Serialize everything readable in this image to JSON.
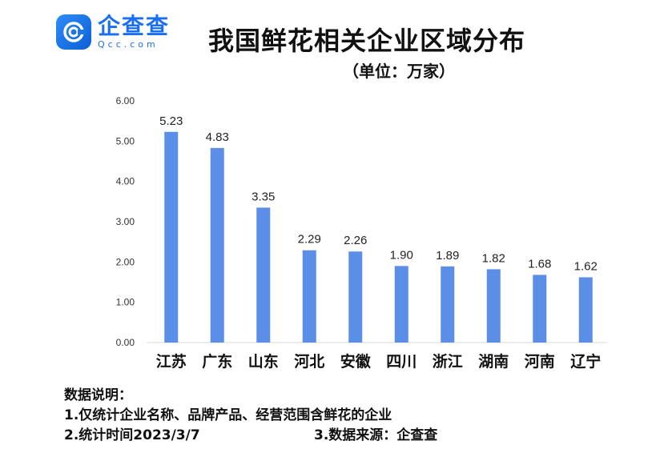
{
  "brand": {
    "name_cn": "企查查",
    "name_en": "Qcc.com"
  },
  "title": "我国鲜花相关企业区域分布",
  "subtitle": "（单位：万家）",
  "chart_data": {
    "type": "bar",
    "categories": [
      "江苏",
      "广东",
      "山东",
      "河北",
      "安徽",
      "四川",
      "浙江",
      "湖南",
      "河南",
      "辽宁"
    ],
    "values": [
      5.23,
      4.83,
      3.35,
      2.29,
      2.26,
      1.9,
      1.89,
      1.82,
      1.68,
      1.62
    ],
    "value_labels": [
      "5.23",
      "4.83",
      "3.35",
      "2.29",
      "2.26",
      "1.90",
      "1.89",
      "1.82",
      "1.68",
      "1.62"
    ],
    "ylim": [
      0,
      6
    ],
    "yticks": [
      "0.00",
      "1.00",
      "2.00",
      "3.00",
      "4.00",
      "5.00",
      "6.00"
    ],
    "grid": false,
    "bar_color": "#5b8ee6"
  },
  "notes": {
    "heading": "数据说明：",
    "line1": "1.仅统计企业名称、品牌产品、经营范围含鲜花的企业",
    "line2": "2.统计时间2023/3/7",
    "line3": "3.数据来源：企查查"
  }
}
